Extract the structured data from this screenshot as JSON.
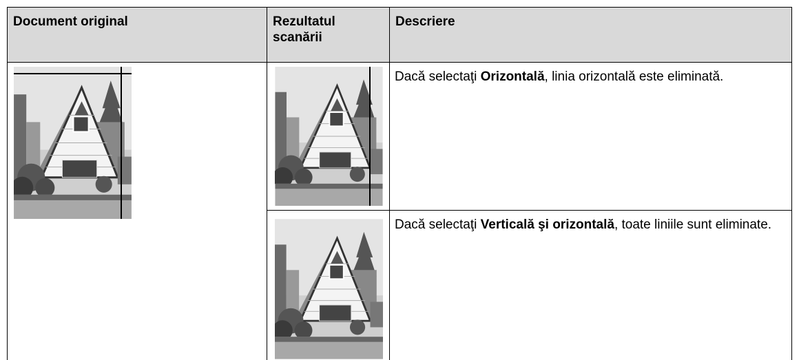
{
  "table": {
    "header": [
      "Document original",
      "Rezultatul scanării",
      "Descriere"
    ],
    "rows": [
      {
        "description": [
          "Dacă selectaţi ",
          "Orizontală",
          ", linia orizontală este eliminată."
        ]
      },
      {
        "description": [
          "Dacă selectaţi ",
          "Verticală şi orizontală",
          ", toate liniile sunt eliminate."
        ]
      }
    ]
  }
}
